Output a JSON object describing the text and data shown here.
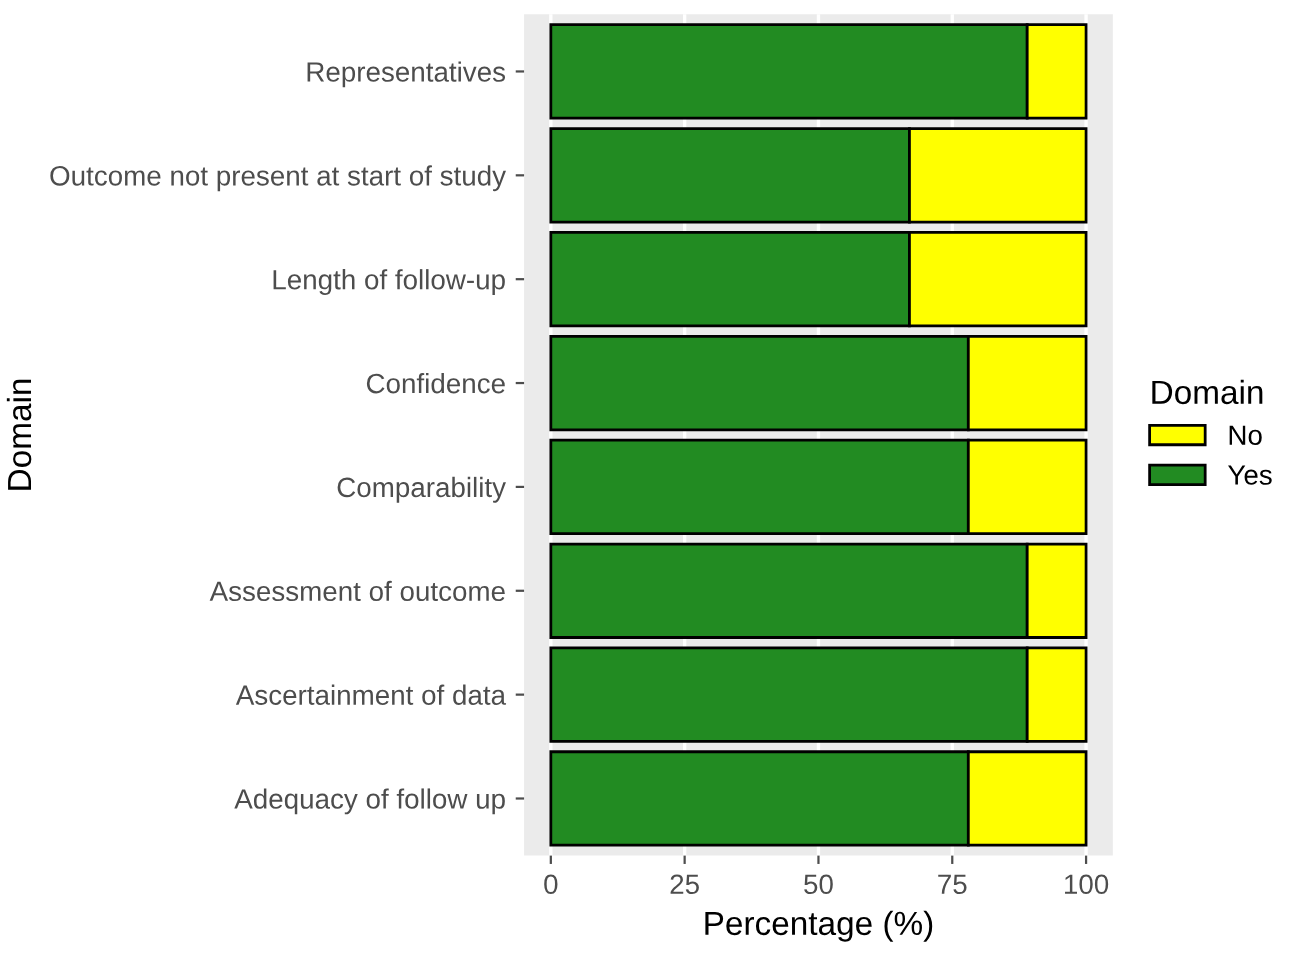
{
  "chart_data": {
    "type": "bar",
    "orientation": "horizontal",
    "stacked": true,
    "xlabel": "Percentage (%)",
    "ylabel": "Domain",
    "legend_title": "Domain",
    "categories": [
      "Representatives",
      "Outcome not present at start of study",
      "Length of follow-up",
      "Confidence",
      "Comparability",
      "Assessment of outcome",
      "Ascertainment of data",
      "Adequacy of follow up"
    ],
    "series": [
      {
        "name": "Yes",
        "color": "#228b22",
        "values": [
          89,
          67,
          67,
          78,
          78,
          89,
          89,
          78
        ]
      },
      {
        "name": "No",
        "color": "#ffff00",
        "values": [
          11,
          33,
          33,
          22,
          22,
          11,
          11,
          22
        ]
      }
    ],
    "xlim": [
      -5,
      105
    ],
    "xticks": [
      0,
      25,
      50,
      75,
      100
    ],
    "grid": "x",
    "legend": "right"
  }
}
